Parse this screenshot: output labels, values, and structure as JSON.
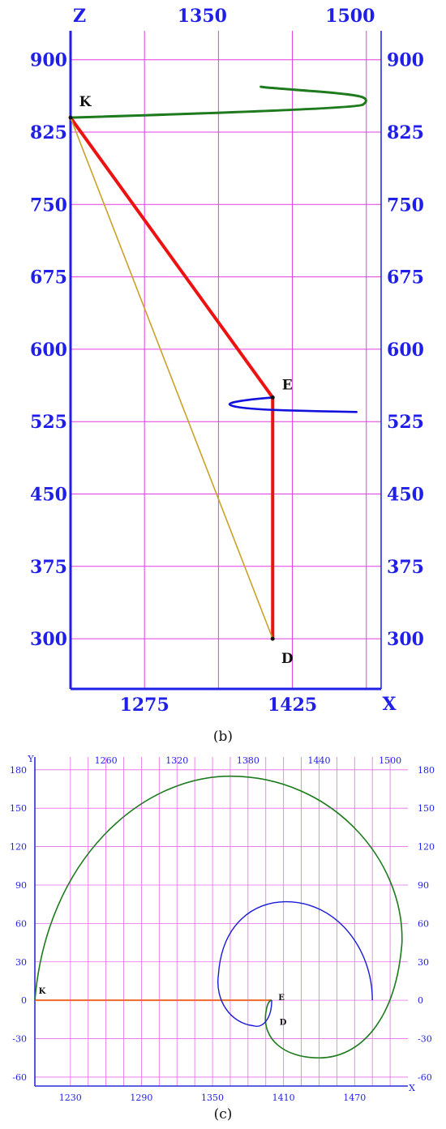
{
  "chart_data": [
    {
      "panel": "b",
      "type": "line",
      "caption": "(b)",
      "vertical_axis_title": "Z",
      "horizontal_axis_title": "X",
      "top_tick_labels": [
        "1350",
        "1500"
      ],
      "bottom_tick_labels": [
        "1275",
        "1425"
      ],
      "left_tick_labels": [
        "900",
        "825",
        "750",
        "675",
        "600",
        "525",
        "450",
        "375",
        "300"
      ],
      "right_tick_labels": [
        "900",
        "825",
        "750",
        "675",
        "600",
        "525",
        "450",
        "375",
        "300"
      ],
      "xlim": [
        1200,
        1515
      ],
      "ylim": [
        248,
        930
      ],
      "grid": true,
      "grid_x": [
        1275,
        1350,
        1425,
        1500
      ],
      "grid_y": [
        300,
        375,
        450,
        525,
        600,
        675,
        750,
        825,
        900
      ],
      "colors": {
        "axis": "#1f1fe8",
        "grid": "#e23de2",
        "path_red": "#ee1111",
        "path_gold": "#c9a227",
        "helix_green": "#1d7a1d",
        "helix_blue": "#1111dd"
      },
      "points": [
        {
          "label": "K",
          "x": 1200,
          "y": 840
        },
        {
          "label": "E",
          "x": 1405,
          "y": 550
        },
        {
          "label": "D",
          "x": 1405,
          "y": 300
        }
      ],
      "series": [
        {
          "color": "red",
          "x": [
            1200,
            1405,
            1405
          ],
          "y": [
            840,
            550,
            300
          ]
        },
        {
          "color": "gold",
          "x": [
            1200,
            1405
          ],
          "y": [
            840,
            300
          ]
        },
        {
          "color": "green",
          "x": [
            1200,
            1490,
            1503,
            1490,
            1400,
            1393
          ],
          "y": [
            840,
            849,
            858,
            864,
            871,
            872
          ]
        },
        {
          "color": "blue",
          "x": [
            1405,
            1380,
            1355,
            1380,
            1440,
            1490
          ],
          "y": [
            550,
            548,
            543,
            538,
            536,
            535
          ]
        }
      ]
    },
    {
      "panel": "c",
      "type": "line",
      "caption": "(c)",
      "vertical_axis_title": "Y",
      "horizontal_axis_title": "X",
      "top_tick_labels": [
        "1260",
        "1320",
        "1380",
        "1440",
        "1500"
      ],
      "bottom_tick_labels": [
        "1230",
        "1290",
        "1350",
        "1410",
        "1470"
      ],
      "left_tick_labels": [
        "180",
        "150",
        "120",
        "90",
        "60",
        "30",
        "0",
        "-30",
        "-60"
      ],
      "right_tick_labels": [
        "180",
        "150",
        "120",
        "90",
        "60",
        "30",
        "0",
        "-30",
        "-60"
      ],
      "xlim": [
        1200,
        1515
      ],
      "ylim": [
        -67,
        190
      ],
      "grid": true,
      "grid_x": [
        1230,
        1245,
        1260,
        1275,
        1290,
        1305,
        1320,
        1335,
        1350,
        1365,
        1380,
        1395,
        1410,
        1425,
        1440,
        1455,
        1470,
        1485,
        1500
      ],
      "grid_y": [
        -60,
        -30,
        0,
        30,
        60,
        90,
        120,
        150,
        180
      ],
      "points": [
        {
          "label": "K",
          "x": 1200,
          "y": 0
        },
        {
          "label": "E",
          "x": 1400,
          "y": 0
        },
        {
          "label": "D",
          "x": 1400,
          "y": -14
        }
      ],
      "series": [
        {
          "color": "orange",
          "x": [
            1200,
            1400
          ],
          "y": [
            0,
            0
          ]
        },
        {
          "color": "green",
          "spiral": "outer",
          "x": [
            1200,
            1365,
            1510,
            1440,
            1395,
            1400
          ],
          "y": [
            0,
            175,
            45,
            -45,
            -10,
            0
          ]
        },
        {
          "color": "blue",
          "spiral": "inner",
          "x": [
            1400,
            1385,
            1355,
            1412,
            1485
          ],
          "y": [
            0,
            -20,
            20,
            77,
            0
          ]
        }
      ]
    }
  ]
}
